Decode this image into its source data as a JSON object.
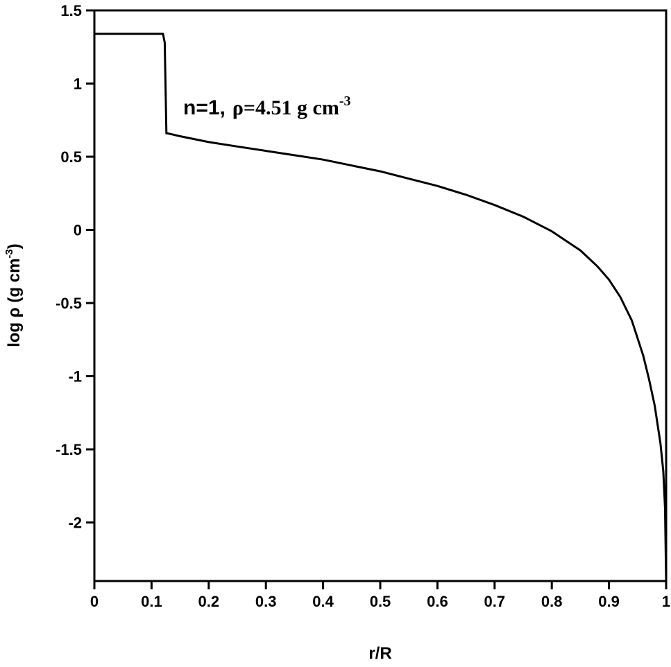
{
  "chart_data": {
    "type": "line",
    "xlabel": "r/R",
    "ylabel": "log ρ (g cm-3)",
    "ylabel_parts": {
      "main": "log ρ (g cm",
      "sup": "-3",
      "close": ")"
    },
    "xlim": [
      0,
      1
    ],
    "ylim": [
      -2.4,
      1.5
    ],
    "x_ticks": [
      0,
      0.1,
      0.2,
      0.3,
      0.4,
      0.5,
      0.6,
      0.7,
      0.8,
      0.9,
      1
    ],
    "x_tick_labels": [
      "0",
      "0.1",
      "0.2",
      "0.3",
      "0.4",
      "0.5",
      "0.6",
      "0.7",
      "0.8",
      "0.9",
      "1"
    ],
    "y_ticks": [
      1.5,
      1,
      0.5,
      0,
      -0.5,
      -1,
      -1.5,
      -2
    ],
    "y_tick_labels": [
      "1.5",
      "1",
      "0.5",
      "0",
      "-0.5",
      "-1",
      "-1.5",
      "-2"
    ],
    "grid": false,
    "annotation": {
      "text": "n=1, ρ=4.51 g cm-3",
      "part1": "n=1,",
      "part2": "ρ=4.51 g cm",
      "sup": "-3"
    },
    "series": [
      {
        "x": [
          0,
          0.12,
          0.123,
          0.126,
          0.128,
          0.15,
          0.2,
          0.25,
          0.3,
          0.35,
          0.4,
          0.45,
          0.5,
          0.55,
          0.6,
          0.65,
          0.7,
          0.75,
          0.8,
          0.85,
          0.88,
          0.9,
          0.92,
          0.94,
          0.96,
          0.97,
          0.98,
          0.99,
          0.995,
          0.998,
          1.0
        ],
        "y": [
          1.34,
          1.34,
          1.28,
          0.66,
          0.66,
          0.64,
          0.6,
          0.57,
          0.54,
          0.51,
          0.48,
          0.44,
          0.4,
          0.35,
          0.3,
          0.24,
          0.17,
          0.09,
          -0.01,
          -0.14,
          -0.25,
          -0.34,
          -0.46,
          -0.62,
          -0.86,
          -1.02,
          -1.2,
          -1.46,
          -1.65,
          -1.9,
          -2.4
        ]
      }
    ]
  }
}
